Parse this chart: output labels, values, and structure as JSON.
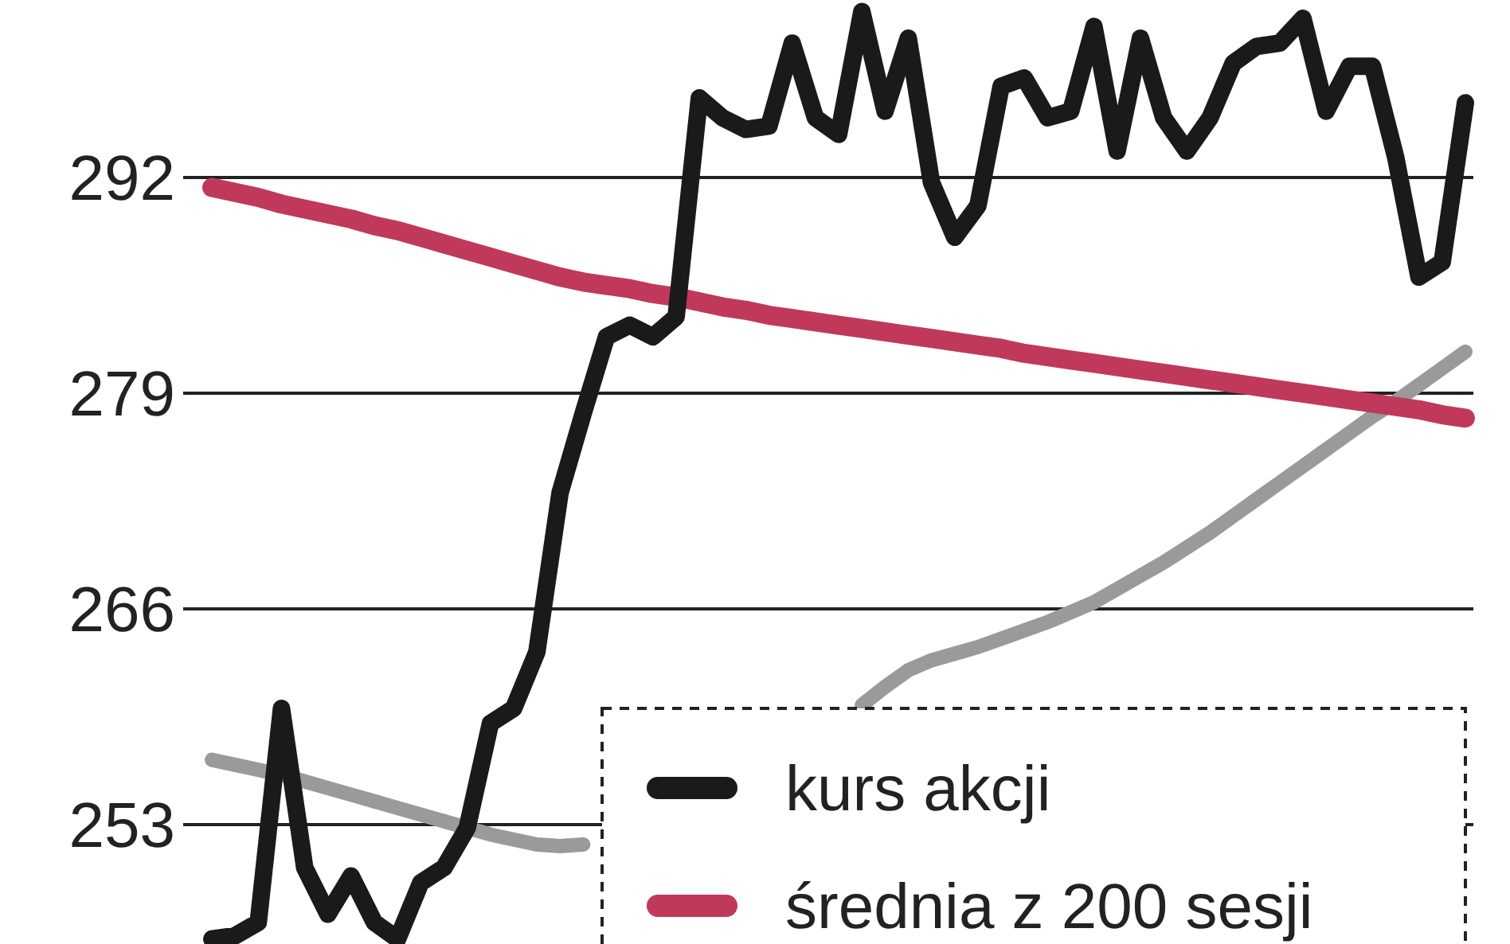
{
  "chart_data": {
    "type": "line",
    "categories": [
      null,
      null,
      null,
      null,
      null,
      null,
      null,
      null,
      null,
      null,
      null,
      null,
      null,
      null,
      null,
      null,
      null,
      null,
      null,
      null,
      null,
      null,
      null,
      null,
      null,
      null,
      null,
      null,
      null,
      null,
      null,
      null,
      null,
      null,
      null,
      null,
      null,
      null,
      null,
      null,
      null,
      null,
      null,
      null,
      null,
      null,
      null,
      null,
      null,
      null,
      null,
      null,
      null,
      null,
      null
    ],
    "series": [
      {
        "color": "#9a9a9a",
        "values": [
          256.9,
          256.6,
          256.3,
          256.0,
          255.6,
          255.2,
          254.8,
          254.4,
          254.0,
          253.6,
          253.2,
          252.8,
          252.4,
          252.1,
          251.8,
          251.7,
          251.8,
          null,
          null,
          null,
          null,
          null,
          null,
          null,
          null,
          null,
          null,
          null,
          260.2,
          261.3,
          262.3,
          262.9,
          263.3,
          263.7,
          264.2,
          264.7,
          265.2,
          265.8,
          266.4,
          267.2,
          268.0,
          268.8,
          269.7,
          270.6,
          271.6,
          272.6,
          273.6,
          274.6,
          275.6,
          276.6,
          277.6,
          278.5,
          279.5,
          280.5,
          281.5
        ]
      },
      {
        "name": "średnia z 200 sesji",
        "color": "#c0395a",
        "values": [
          291.4,
          291.1,
          290.8,
          290.4,
          290.1,
          289.8,
          289.5,
          289.1,
          288.8,
          288.4,
          288.0,
          287.6,
          287.2,
          286.8,
          286.4,
          286.0,
          285.7,
          285.5,
          285.3,
          285.0,
          284.8,
          284.5,
          284.2,
          284.0,
          283.7,
          283.5,
          283.3,
          283.1,
          282.9,
          282.7,
          282.5,
          282.3,
          282.1,
          281.9,
          281.7,
          281.4,
          281.2,
          281.0,
          280.8,
          280.6,
          280.4,
          280.2,
          280.0,
          279.8,
          279.6,
          279.4,
          279.2,
          279.0,
          278.8,
          278.6,
          278.4,
          278.2,
          278.0,
          277.7,
          277.5
        ]
      },
      {
        "name": "kurs akcji",
        "color": "#1a1a1a",
        "values": [
          246.1,
          246.3,
          247.1,
          260.0,
          250.4,
          247.6,
          249.9,
          247.1,
          246.1,
          249.5,
          250.4,
          252.8,
          259.1,
          260.0,
          263.4,
          273.0,
          277.8,
          282.4,
          283.1,
          282.4,
          283.6,
          296.8,
          295.6,
          294.9,
          295.1,
          300.1,
          295.6,
          294.6,
          302.0,
          296.0,
          300.4,
          291.7,
          288.4,
          290.3,
          297.5,
          298.0,
          295.6,
          296.0,
          301.1,
          293.6,
          300.4,
          295.6,
          293.6,
          295.6,
          298.9,
          299.9,
          300.1,
          301.6,
          296.0,
          298.7,
          298.7,
          293.2,
          286.0,
          286.9,
          296.5
        ]
      }
    ],
    "ylim": [
      245.8,
      302.7
    ],
    "yticks": [
      253,
      266,
      279,
      292
    ],
    "grid": "y",
    "legend": "bottom right",
    "marker": "none",
    "line_style": "solid",
    "tick_labels": "y"
  }
}
